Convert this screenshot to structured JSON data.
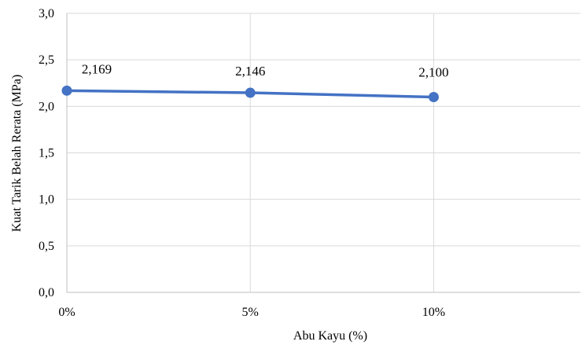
{
  "chart_data": {
    "type": "line",
    "categories": [
      "0%",
      "5%",
      "10%"
    ],
    "x": [
      0,
      5,
      10
    ],
    "xlim": [
      0,
      14
    ],
    "series": [
      {
        "values": [
          2.169,
          2.146,
          2.1
        ],
        "labels": [
          "2,169",
          "2,146",
          "2,100"
        ],
        "color": "#4472C4"
      }
    ],
    "xlabel": "Abu Kayu (%)",
    "ylabel": "Kuat Tarik Belah Rerata (MPa)",
    "ylim": [
      0,
      3.0
    ],
    "yticks": [
      0,
      0.5,
      1.0,
      1.5,
      2.0,
      2.5,
      3.0
    ],
    "ytick_labels": [
      "0,0",
      "0,5",
      "1,0",
      "1,5",
      "2,0",
      "2,5",
      "3,0"
    ],
    "grid": true,
    "grid_color": "#D9D9D9",
    "axis_color": "#BFBFBF"
  }
}
